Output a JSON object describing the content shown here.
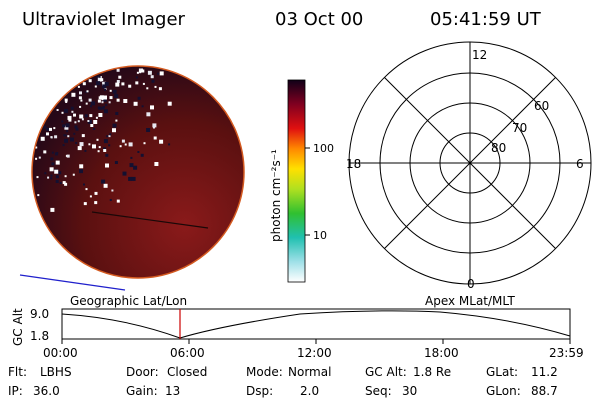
{
  "header": {
    "title": "Ultraviolet Imager",
    "date": "03 Oct 00",
    "time": "05:41:59 UT"
  },
  "colorbar": {
    "unit_label": "photon cm⁻²s⁻¹",
    "tick_labels": [
      "100",
      "10"
    ]
  },
  "polar_plot": {
    "mlt_labels": {
      "top": "12",
      "left": "18",
      "right": "6",
      "bottom": "0"
    },
    "lat_labels": [
      "60",
      "70",
      "80"
    ]
  },
  "altitude_panel": {
    "left_title": "Geographic Lat/Lon",
    "right_title": "Apex MLat/MLT",
    "ylabel": "GC Alt",
    "y_ticks": [
      "9.0",
      "1.8"
    ],
    "x_ticks": [
      "00:00",
      "06:00",
      "12:00",
      "18:00",
      "23:59"
    ],
    "current_marker_color": "#cc0000"
  },
  "status": {
    "row1": [
      {
        "label": "Flt:",
        "value": "LBHS"
      },
      {
        "label": "Door:",
        "value": "Closed"
      },
      {
        "label": "Mode:",
        "value": "Normal"
      },
      {
        "label": "GC Alt:",
        "value": "1.8 Re"
      },
      {
        "label": "GLat:",
        "value": "11.2"
      }
    ],
    "row2": [
      {
        "label": "IP:",
        "value": "36.0"
      },
      {
        "label": "Gain:",
        "value": "13"
      },
      {
        "label": "Dsp:",
        "value": "2.0"
      },
      {
        "label": "Seq:",
        "value": "30"
      },
      {
        "label": "GLon:",
        "value": "88.7"
      }
    ]
  },
  "colors": {
    "earth_disk": "#6a1212",
    "limb": "#d45a20",
    "terminator_line": "#2020cc"
  }
}
